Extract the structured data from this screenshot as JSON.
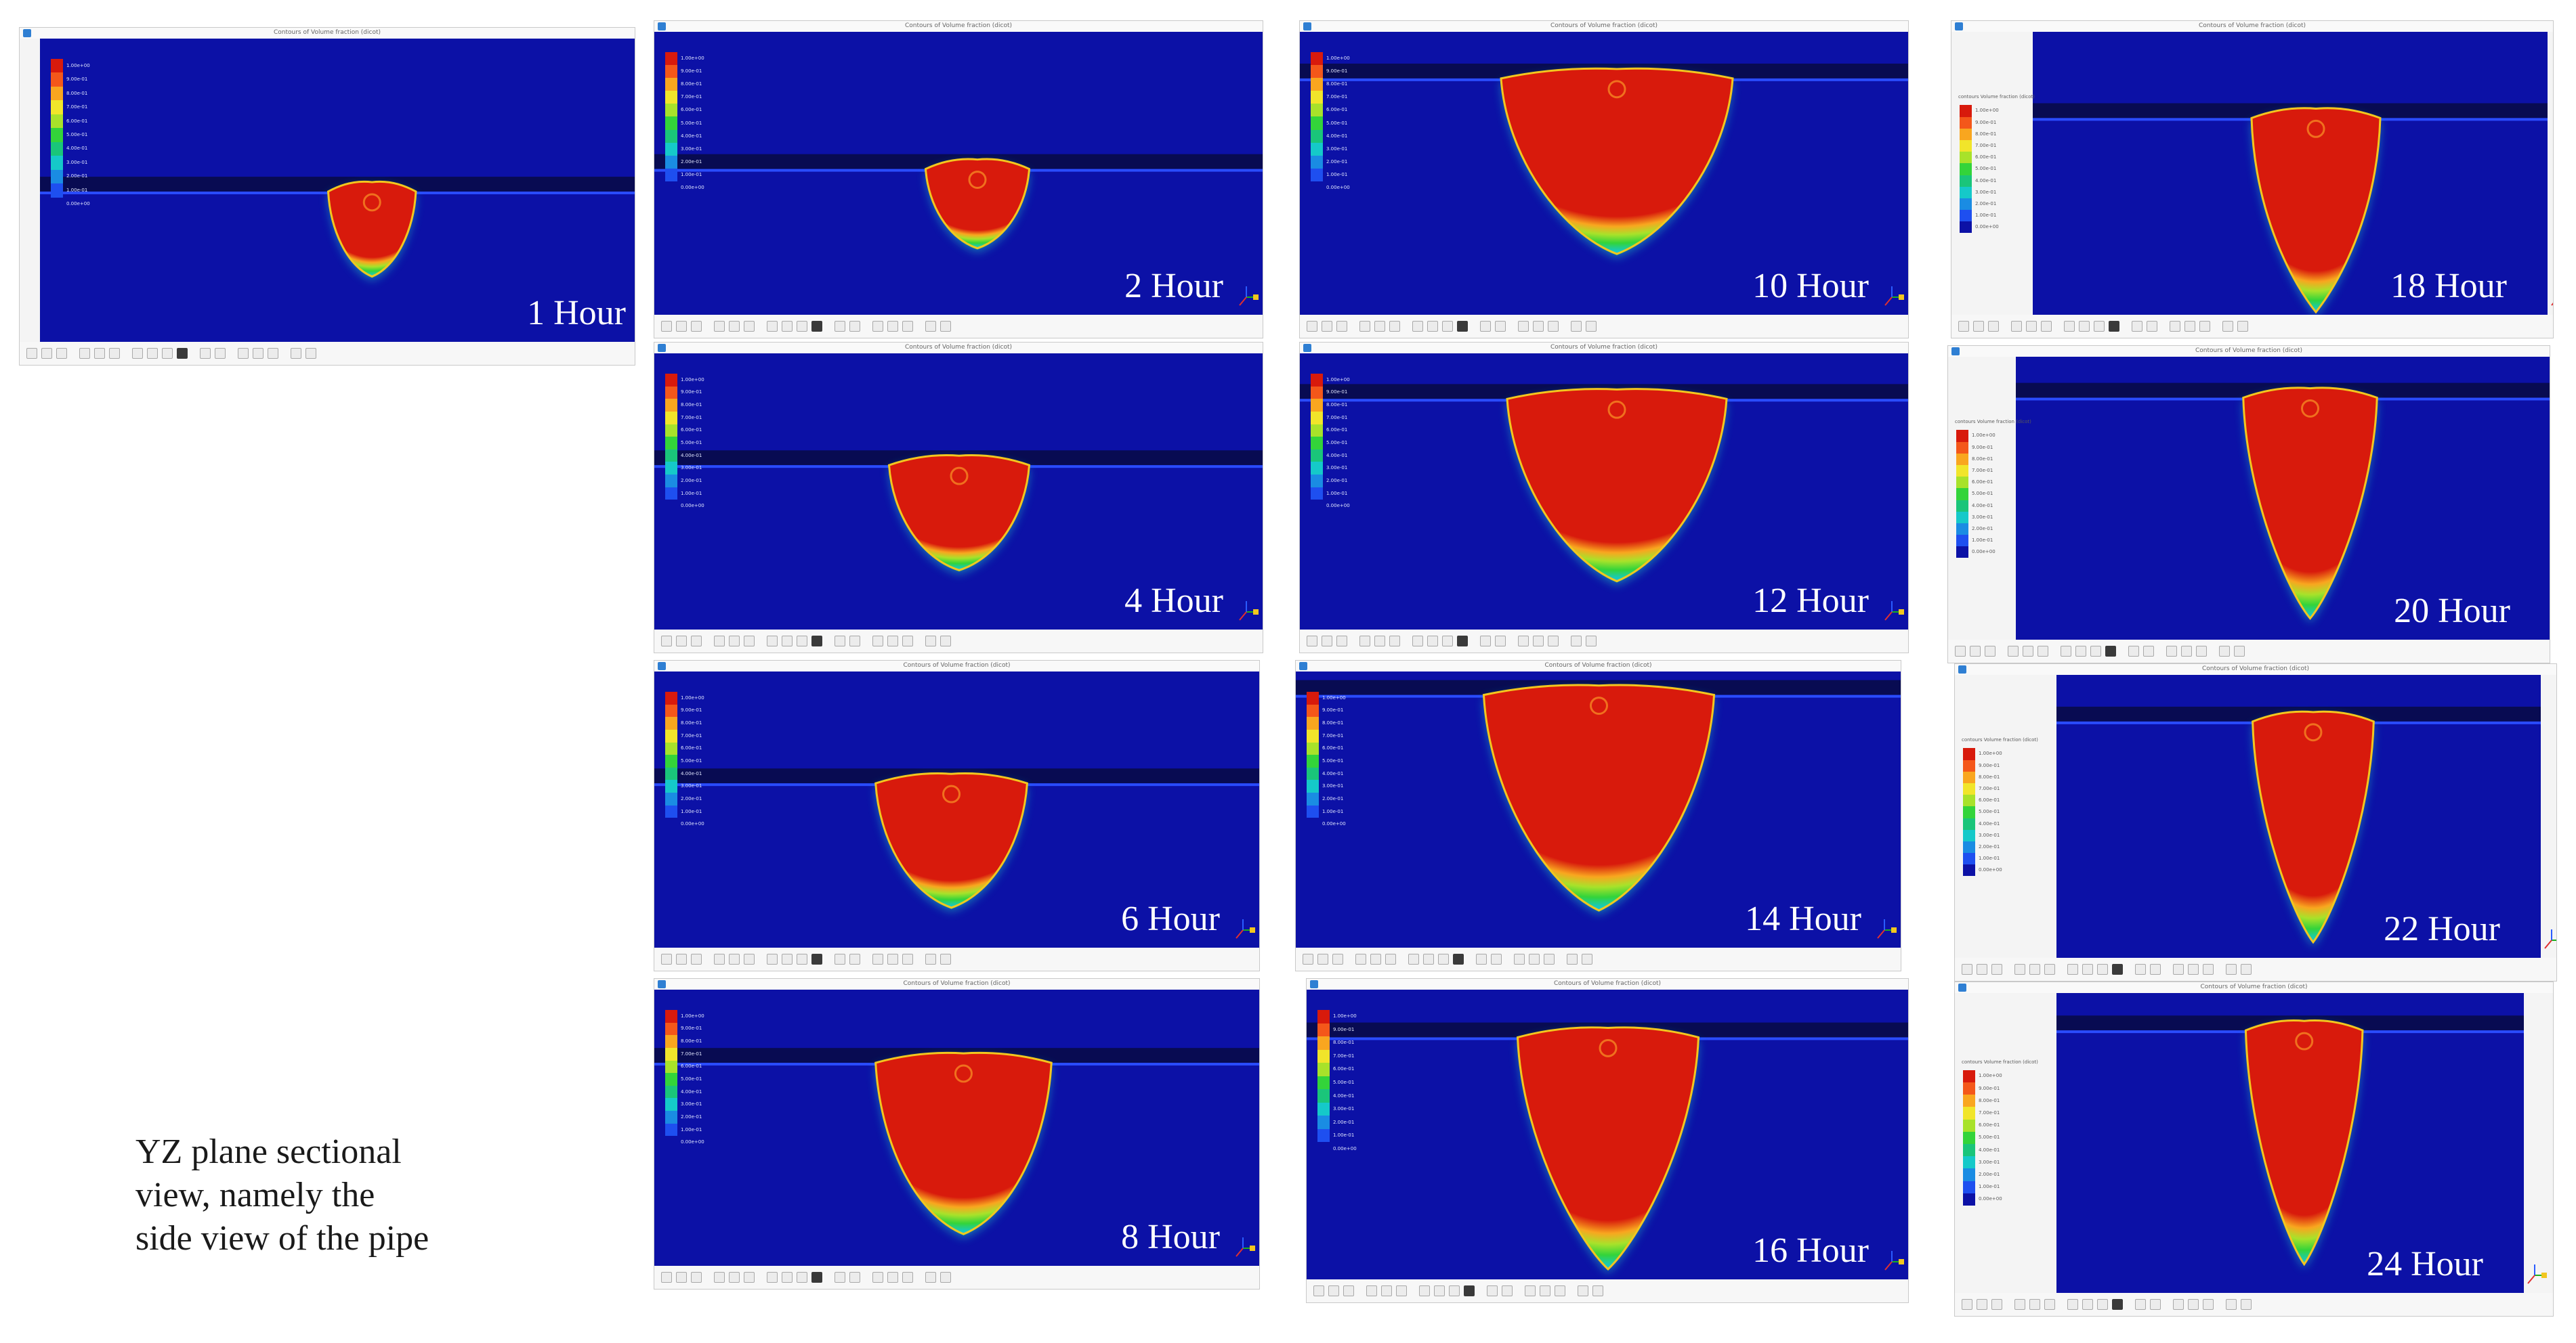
{
  "window_title": "Contours of Volume fraction (dicot)",
  "panels": [
    {
      "label": "1 Hour",
      "hours": 1
    },
    {
      "label": "2 Hour",
      "hours": 2
    },
    {
      "label": "4 Hour",
      "hours": 4
    },
    {
      "label": "6 Hour",
      "hours": 6
    },
    {
      "label": "8 Hour",
      "hours": 8
    },
    {
      "label": "10 Hour",
      "hours": 10
    },
    {
      "label": "12 Hour",
      "hours": 12
    },
    {
      "label": "14 Hour",
      "hours": 14
    },
    {
      "label": "16 Hour",
      "hours": 16
    },
    {
      "label": "18 Hour",
      "hours": 18
    },
    {
      "label": "20 Hour",
      "hours": 20
    },
    {
      "label": "22 Hour",
      "hours": 22
    },
    {
      "label": "24 Hour",
      "hours": 24
    }
  ],
  "legend": {
    "title": "contours Volume fraction (dicot)",
    "values": [
      "1.00e+00",
      "9.00e-01",
      "8.00e-01",
      "7.00e-01",
      "6.00e-01",
      "5.00e-01",
      "4.00e-01",
      "3.00e-01",
      "2.00e-01",
      "1.00e-01",
      "0.00e+00"
    ]
  },
  "colors": {
    "background": "#0c11a6",
    "soil_band": "#080b52",
    "soil_line": "#2a4cff",
    "plume_core": "#d81a0c"
  },
  "caption": {
    "line1": "YZ plane sectional",
    "line2": "view, namely the",
    "line3": "side view of the pipe"
  }
}
